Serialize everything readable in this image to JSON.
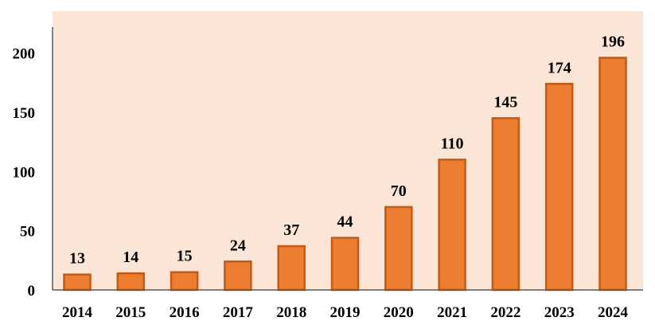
{
  "chart_data": {
    "type": "bar",
    "categories": [
      "2014",
      "2015",
      "2016",
      "2017",
      "2018",
      "2019",
      "2020",
      "2021",
      "2022",
      "2023",
      "2024"
    ],
    "values": [
      13,
      14,
      15,
      24,
      37,
      44,
      70,
      110,
      145,
      174,
      196
    ],
    "y_ticks": [
      "0",
      "50",
      "100",
      "150",
      "200"
    ],
    "ylim": [
      0,
      220
    ],
    "grid": false,
    "legend": "none",
    "colors": {
      "plot_background": "#fbe5d6",
      "bar_fill": "#ed7d31",
      "bar_stroke": "#c55a11",
      "axis": "#595959"
    }
  }
}
